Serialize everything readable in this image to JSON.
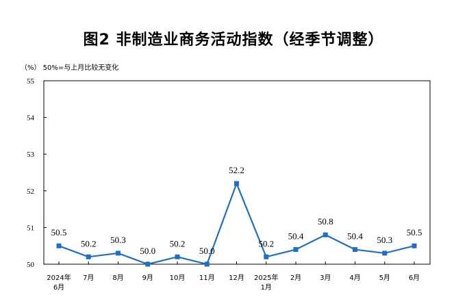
{
  "chart_data": {
    "type": "line",
    "title": "图2  非制造业商务活动指数（经季节调整）",
    "unit_note": "（%）  50%=与上月比较无变化",
    "categories": [
      [
        "2024年",
        "6月"
      ],
      [
        "7月"
      ],
      [
        "8月"
      ],
      [
        "9月"
      ],
      [
        "10月"
      ],
      [
        "11月"
      ],
      [
        "12月"
      ],
      [
        "2025年",
        "1月"
      ],
      [
        "2月"
      ],
      [
        "3月"
      ],
      [
        "4月"
      ],
      [
        "5月"
      ],
      [
        "6月"
      ]
    ],
    "values": [
      50.5,
      50.2,
      50.3,
      50.0,
      50.2,
      50.0,
      52.2,
      50.2,
      50.4,
      50.8,
      50.4,
      50.3,
      50.5
    ],
    "data_labels": [
      "50.5",
      "50.2",
      "50.3",
      "50.0",
      "50.2",
      "50.0",
      "52.2",
      "50.2",
      "50.4",
      "50.8",
      "50.4",
      "50.3",
      "50.5"
    ],
    "y_ticks": [
      "50",
      "51",
      "52",
      "53",
      "54",
      "55"
    ],
    "ylim": [
      50,
      55
    ],
    "grid": false,
    "line_color": "#1f6fc5",
    "axis_color": "#000000"
  }
}
